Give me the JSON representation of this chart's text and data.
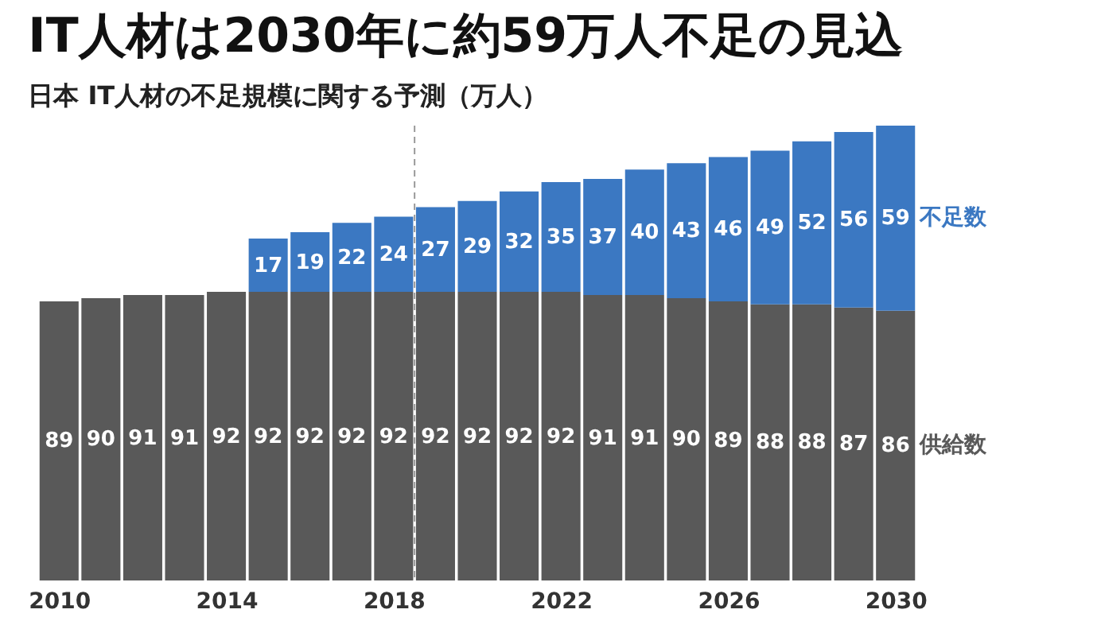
{
  "chart_data": {
    "type": "bar",
    "title": "IT人材は2030年に約59万人不足の見込",
    "subtitle": "日本 IT人材の不足規模に関する予測（万人）",
    "x": [
      2010,
      2011,
      2012,
      2013,
      2014,
      2015,
      2016,
      2017,
      2018,
      2019,
      2020,
      2021,
      2022,
      2023,
      2024,
      2025,
      2026,
      2027,
      2028,
      2029,
      2030
    ],
    "xlim": [
      2009.5,
      2030.5
    ],
    "ylim": [
      0,
      145
    ],
    "xticks": [
      2010,
      2014,
      2018,
      2022,
      2026,
      2030
    ],
    "stacked": true,
    "data_labels": true,
    "grid": false,
    "legend": false,
    "tick_labels": "x",
    "series": [
      {
        "name": "供給数",
        "color": "#595959",
        "values": [
          89,
          90,
          91,
          91,
          92,
          92,
          92,
          92,
          92,
          92,
          92,
          92,
          92,
          91,
          91,
          90,
          89,
          88,
          88,
          87,
          86
        ]
      },
      {
        "name": "不足数",
        "color": "#3b78c2",
        "values": [
          null,
          null,
          null,
          null,
          null,
          17,
          19,
          22,
          24,
          27,
          29,
          32,
          35,
          37,
          40,
          43,
          46,
          49,
          52,
          56,
          59
        ]
      }
    ],
    "ref_lines": [
      {
        "axis": "x",
        "value": 2018.5,
        "label": null,
        "color": "#999999",
        "line_style": "dashed"
      }
    ]
  }
}
